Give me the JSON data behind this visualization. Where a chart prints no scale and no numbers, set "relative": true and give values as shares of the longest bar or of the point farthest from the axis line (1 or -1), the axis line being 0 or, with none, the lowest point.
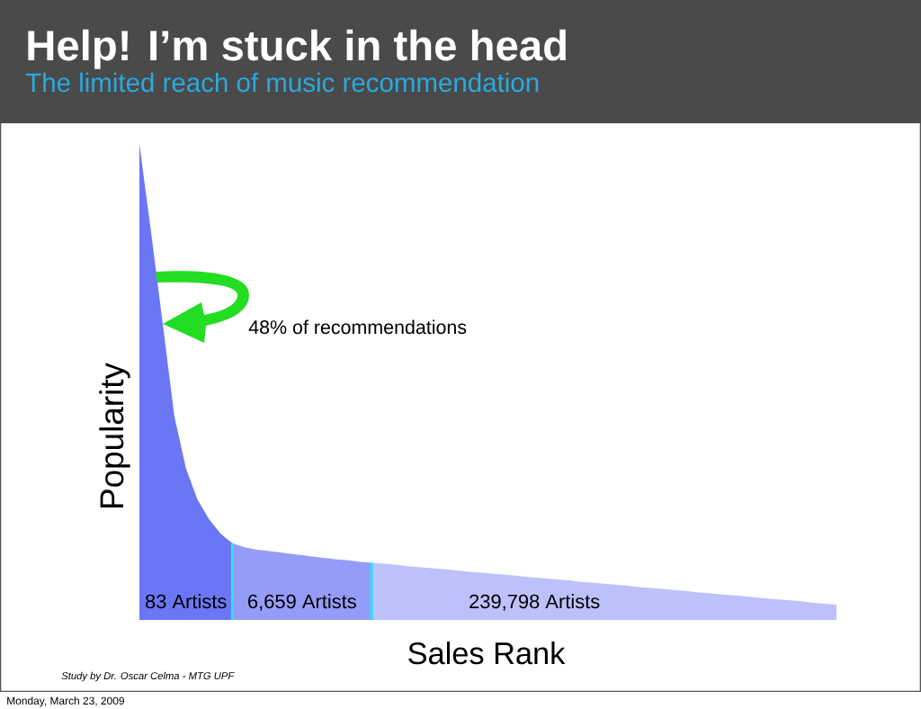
{
  "chart_data": {
    "type": "area",
    "title": "Help! I’m stuck in the head",
    "subtitle": "The limited reach of music recommendation",
    "xlabel": "Sales Rank",
    "ylabel": "Popularity",
    "relative": true,
    "categories": [
      null,
      null,
      null,
      null,
      null,
      null,
      null,
      null,
      null,
      null,
      null,
      null,
      null,
      null,
      null,
      null,
      null,
      null,
      null,
      null,
      null,
      null,
      null,
      null,
      null,
      null,
      null,
      null,
      null,
      null,
      null,
      null,
      null,
      null,
      null,
      null,
      null,
      null,
      null,
      null,
      null,
      null,
      null,
      null,
      null,
      null,
      null,
      null,
      null,
      null,
      null,
      null,
      null,
      null,
      null,
      null,
      null,
      null,
      null,
      null,
      null
    ],
    "series": [
      {
        "name": "83 Artists",
        "color": "#6b76f5",
        "values": [
          1.0,
          0.815,
          0.624,
          0.429,
          0.319,
          0.253,
          0.211,
          0.181,
          0.161,
          null,
          null,
          null,
          null,
          null,
          null,
          null,
          null,
          null,
          null,
          null,
          null,
          null,
          null,
          null,
          null,
          null,
          null,
          null,
          null,
          null,
          null,
          null,
          null,
          null,
          null,
          null,
          null,
          null,
          null,
          null,
          null,
          null,
          null,
          null,
          null,
          null,
          null,
          null,
          null,
          null,
          null,
          null,
          null,
          null,
          null,
          null,
          null,
          null,
          null,
          null,
          null
        ]
      },
      {
        "name": "6,659 Artists",
        "color": "#959cf8",
        "values": [
          null,
          null,
          null,
          null,
          null,
          null,
          null,
          null,
          0.161,
          0.153,
          0.148,
          0.145,
          0.142,
          0.139,
          0.136,
          0.133,
          0.13,
          0.127,
          0.125,
          0.122,
          0.12,
          null,
          null,
          null,
          null,
          null,
          null,
          null,
          null,
          null,
          null,
          null,
          null,
          null,
          null,
          null,
          null,
          null,
          null,
          null,
          null,
          null,
          null,
          null,
          null,
          null,
          null,
          null,
          null,
          null,
          null,
          null,
          null,
          null,
          null,
          null,
          null,
          null,
          null,
          null,
          null
        ]
      },
      {
        "name": "239,798 Artists",
        "color": "#bcc1fa",
        "values": [
          null,
          null,
          null,
          null,
          null,
          null,
          null,
          null,
          null,
          null,
          null,
          null,
          null,
          null,
          null,
          null,
          null,
          null,
          null,
          null,
          0.12,
          0.118,
          0.116,
          0.113,
          0.111,
          0.109,
          0.107,
          0.105,
          0.102,
          0.1,
          0.098,
          0.096,
          0.094,
          0.091,
          0.089,
          0.087,
          0.085,
          0.083,
          0.08,
          0.078,
          0.076,
          0.074,
          0.072,
          0.069,
          0.067,
          0.065,
          0.063,
          0.061,
          0.058,
          0.056,
          0.054,
          0.052,
          0.05,
          0.047,
          0.045,
          0.043,
          0.041,
          0.039,
          0.036,
          0.034,
          0.032
        ]
      }
    ],
    "annotations": [
      "48% of recommendations",
      "Study by Dr. Oscar Celma - MTG UPF",
      "Monday, March 23, 2009"
    ]
  }
}
